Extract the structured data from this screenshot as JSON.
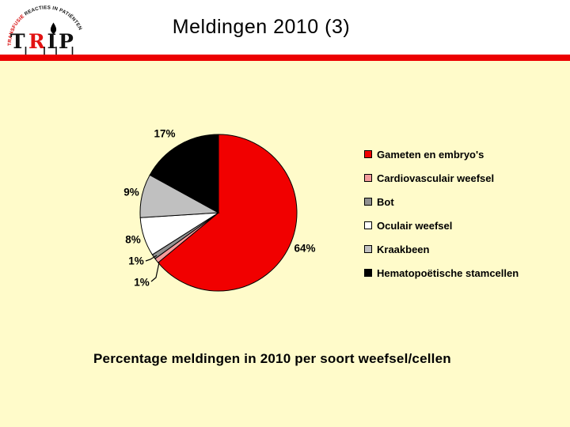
{
  "slide": {
    "title": "Meldingen 2010 (3)",
    "caption": "Percentage meldingen in 2010 per soort weefsel/cellen"
  },
  "logo": {
    "letters": [
      "T",
      "R",
      "I",
      "P"
    ],
    "letter_t": "T",
    "letter_r": "R",
    "letter_i": "I",
    "letter_p": "P",
    "arc_text_red": "TRANSFUSIE ",
    "arc_text_black": "REACTIES IN PATIËNTEN",
    "red": "#d50000",
    "black": "#111111"
  },
  "theme": {
    "background": "#fffbca",
    "header_background": "#ffffff",
    "bar_color": "#ec0000",
    "text_color": "#000000"
  },
  "chart_data": {
    "type": "pie",
    "title": "",
    "start_angle_deg": 0,
    "direction": "clockwise",
    "legend_position": "right",
    "labels_shown": true,
    "slices": [
      {
        "legend": "Gameten en embryo's",
        "value_pct": 64,
        "label": "64%",
        "color": "#f10000"
      },
      {
        "legend": "Cardiovasculair weefsel",
        "value_pct": 1,
        "label": "1%",
        "color": "#f49c9c"
      },
      {
        "legend": "Bot",
        "value_pct": 1,
        "label": "1%",
        "color": "#909090"
      },
      {
        "legend": "Oculair weefsel",
        "value_pct": 8,
        "label": "8%",
        "color": "#ffffff"
      },
      {
        "legend": "Kraakbeen",
        "value_pct": 9,
        "label": "9%",
        "color": "#c0c0c0"
      },
      {
        "legend": "Hematopoëtische stamcellen",
        "value_pct": 17,
        "label": "17%",
        "color": "#000000"
      }
    ]
  }
}
